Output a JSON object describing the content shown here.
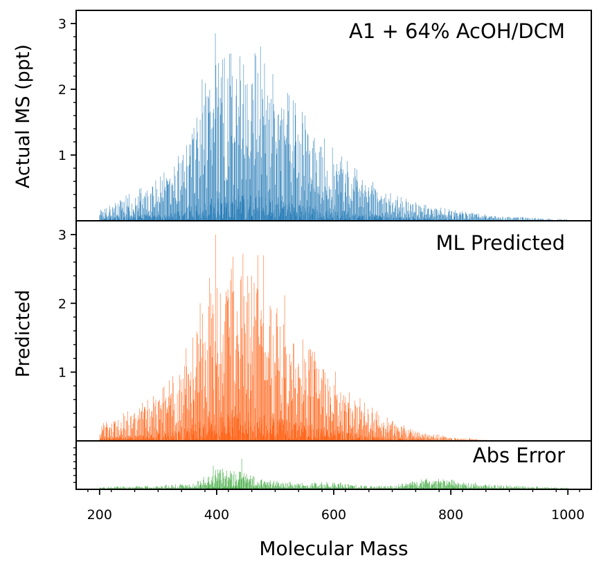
{
  "chart_data": [
    {
      "type": "bar",
      "panel": "actual",
      "annotation": "A1 + 64% AcOH/DCM",
      "ylabel": "Actual MS (ppt)",
      "ylim": [
        0,
        3.2
      ],
      "yticks": [
        1,
        2,
        3
      ],
      "ytick_labels": [
        "1",
        "2",
        "3"
      ],
      "color": "#1f77b4",
      "envelope": {
        "mass": [
          200,
          250,
          300,
          340,
          360,
          390,
          420,
          450,
          480,
          520,
          560,
          600,
          650,
          700,
          750,
          800,
          850,
          900,
          950,
          1000
        ],
        "intensity": [
          0.2,
          0.35,
          0.55,
          0.9,
          1.4,
          2.0,
          2.2,
          2.3,
          2.1,
          1.7,
          1.3,
          0.95,
          0.6,
          0.35,
          0.22,
          0.15,
          0.09,
          0.06,
          0.04,
          0.02
        ]
      },
      "peaks": [
        {
          "mass": 398,
          "intensity": 2.85
        },
        {
          "mass": 440,
          "intensity": 2.5
        },
        {
          "mass": 475,
          "intensity": 2.65
        },
        {
          "mass": 465,
          "intensity": 2.55
        },
        {
          "mass": 375,
          "intensity": 2.15
        },
        {
          "mass": 360,
          "intensity": 1.25
        }
      ]
    },
    {
      "type": "bar",
      "panel": "predicted",
      "annotation": "ML Predicted",
      "ylabel": "Predicted",
      "ylim": [
        0,
        3.2
      ],
      "yticks": [
        1,
        2,
        3
      ],
      "ytick_labels": [
        "1",
        "2",
        "3"
      ],
      "color": "#ff5a0a",
      "envelope": {
        "mass": [
          200,
          250,
          300,
          340,
          360,
          390,
          420,
          450,
          480,
          520,
          560,
          600,
          650,
          700,
          750,
          800,
          850,
          900,
          950,
          1000
        ],
        "intensity": [
          0.2,
          0.38,
          0.6,
          0.95,
          1.5,
          2.1,
          2.3,
          2.4,
          2.2,
          1.8,
          1.35,
          0.9,
          0.5,
          0.25,
          0.12,
          0.05,
          0.02,
          0.0,
          0.0,
          0.0
        ]
      },
      "peaks": [
        {
          "mass": 398,
          "intensity": 3.0
        },
        {
          "mass": 445,
          "intensity": 2.72
        },
        {
          "mass": 480,
          "intensity": 2.7
        },
        {
          "mass": 470,
          "intensity": 2.7
        },
        {
          "mass": 425,
          "intensity": 2.5
        }
      ]
    },
    {
      "type": "bar",
      "panel": "error",
      "annotation": "Abs Error",
      "ylabel": "",
      "ylim": [
        0,
        0.7
      ],
      "color": "#2ca02c",
      "envelope": {
        "mass": [
          200,
          300,
          360,
          400,
          440,
          480,
          550,
          600,
          650,
          700,
          760,
          800,
          850,
          900,
          1000
        ],
        "intensity": [
          0.03,
          0.05,
          0.08,
          0.25,
          0.22,
          0.12,
          0.08,
          0.1,
          0.05,
          0.05,
          0.14,
          0.12,
          0.08,
          0.05,
          0.02
        ]
      },
      "peaks": [
        {
          "mass": 443,
          "intensity": 0.44
        },
        {
          "mass": 394,
          "intensity": 0.34
        },
        {
          "mass": 410,
          "intensity": 0.3
        }
      ]
    }
  ],
  "xaxis": {
    "label": "Molecular Mass",
    "lim": [
      160,
      1040
    ],
    "ticks": [
      200,
      400,
      600,
      800,
      1000
    ],
    "tick_labels": [
      "200",
      "400",
      "600",
      "800",
      "1000"
    ]
  }
}
